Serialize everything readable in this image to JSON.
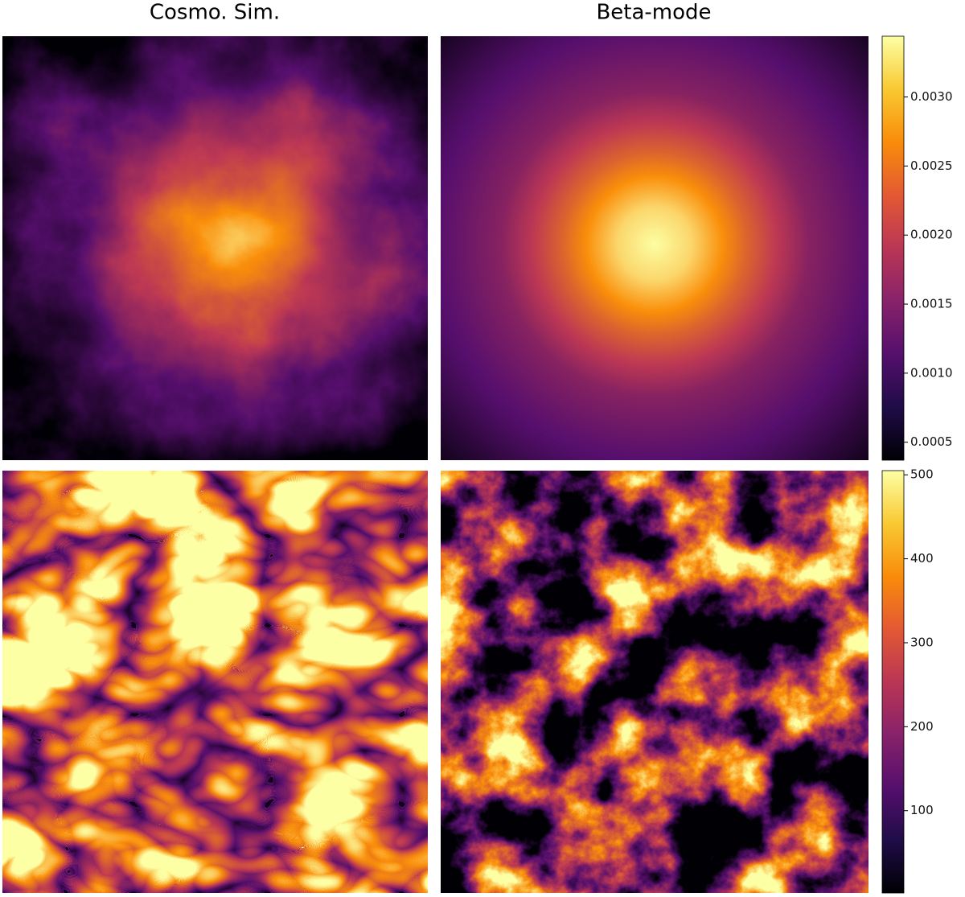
{
  "titles": [
    "Cosmo. Sim.",
    "Beta-mode"
  ],
  "chart_data": [
    {
      "type": "colorbar",
      "colormap": "inferno",
      "ylim": [
        0.00037,
        0.00344
      ],
      "yticks": [
        0.0005,
        {
          "value": 0.001,
          "label": "0.0010"
        },
        0.0015,
        {
          "value": 0.002,
          "label": "0.0020"
        },
        0.0025,
        {
          "value": 0.003,
          "label": "0.0030"
        }
      ]
    },
    {
      "type": "colorbar",
      "colormap": "inferno",
      "ylim": [
        2,
        505
      ],
      "yticks": [
        100,
        200,
        300,
        400,
        500
      ]
    }
  ]
}
